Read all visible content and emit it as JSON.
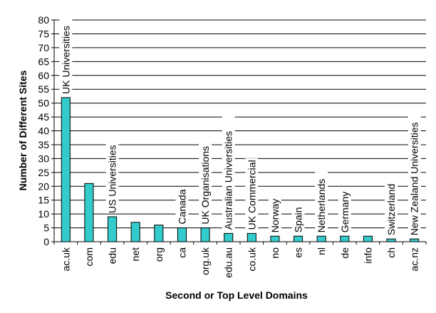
{
  "chart_data": {
    "type": "bar",
    "xlabel": "Second or Top Level Domains",
    "ylabel": "Number of Different Sites",
    "ylim": [
      0,
      80
    ],
    "ytick_step": 5,
    "grid": true,
    "categories": [
      "ac.uk",
      "com",
      "edu",
      "net",
      "org",
      "ca",
      "org.uk",
      "edu.au",
      "co.uk",
      "no",
      "es",
      "nl",
      "de",
      "info",
      "ch",
      "ac.nz"
    ],
    "values": [
      52,
      21,
      9,
      7,
      6,
      5,
      5,
      3,
      3,
      2,
      2,
      2,
      2,
      2,
      1,
      1
    ],
    "bar_labels": [
      "UK Universities",
      "",
      "US Universities",
      "",
      "",
      "Canada",
      "UK Organisations",
      "Australian Universities",
      "UK Commercial",
      "Norway",
      "Spain",
      "Netherlands",
      "Germany",
      "",
      "Switzerland",
      "New Zealand Universities"
    ],
    "bar_color": "#33cccc"
  }
}
